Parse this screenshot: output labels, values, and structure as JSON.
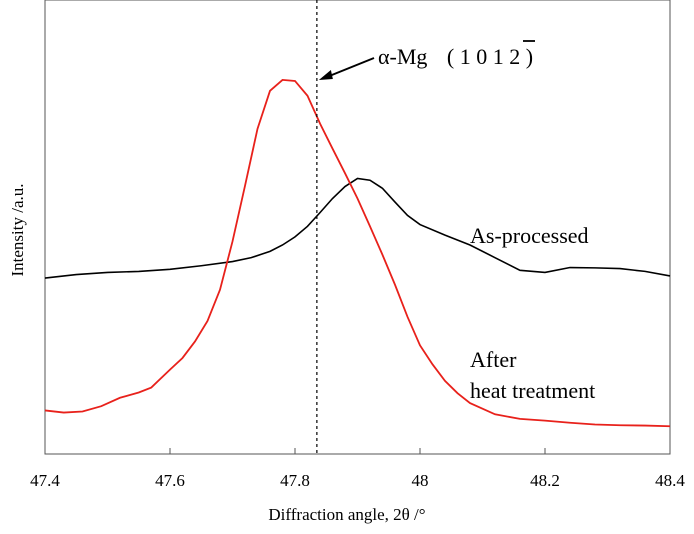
{
  "chart_data": {
    "type": "line",
    "title": "",
    "xlabel": "Diffraction angle, 2θ /°",
    "ylabel": "Intensity /a.u.",
    "xlim": [
      47.4,
      48.4
    ],
    "ylim": [
      0,
      100
    ],
    "x_ticks": [
      47.4,
      47.6,
      47.8,
      48,
      48.2,
      48.4
    ],
    "x_tick_labels": [
      "47.4",
      "47.6",
      "47.8",
      "48",
      "48.2",
      "48.4"
    ],
    "grid": false,
    "series": [
      {
        "name": "As-processed",
        "color": "#000000",
        "points": [
          [
            47.4,
            46.0
          ],
          [
            47.45,
            47.0
          ],
          [
            47.5,
            47.6
          ],
          [
            47.55,
            47.9
          ],
          [
            47.6,
            48.5
          ],
          [
            47.65,
            49.5
          ],
          [
            47.7,
            50.7
          ],
          [
            47.73,
            51.8
          ],
          [
            47.76,
            53.6
          ],
          [
            47.78,
            55.4
          ],
          [
            47.8,
            57.7
          ],
          [
            47.82,
            60.7
          ],
          [
            47.84,
            64.6
          ],
          [
            47.86,
            68.6
          ],
          [
            47.88,
            72.0
          ],
          [
            47.9,
            74.3
          ],
          [
            47.92,
            73.8
          ],
          [
            47.94,
            71.5
          ],
          [
            47.96,
            67.6
          ],
          [
            47.98,
            63.8
          ],
          [
            48.0,
            61.2
          ],
          [
            48.04,
            58.2
          ],
          [
            48.08,
            55.4
          ],
          [
            48.12,
            51.8
          ],
          [
            48.16,
            48.2
          ],
          [
            48.2,
            47.6
          ],
          [
            48.24,
            49.0
          ],
          [
            48.28,
            48.9
          ],
          [
            48.32,
            48.7
          ],
          [
            48.36,
            47.9
          ],
          [
            48.4,
            46.6
          ]
        ]
      },
      {
        "name": "After heat treatment",
        "color": "#e8211b",
        "points": [
          [
            47.4,
            8.4
          ],
          [
            47.43,
            7.8
          ],
          [
            47.46,
            8.1
          ],
          [
            47.49,
            9.6
          ],
          [
            47.52,
            12.0
          ],
          [
            47.55,
            13.5
          ],
          [
            47.57,
            14.9
          ],
          [
            47.6,
            20.0
          ],
          [
            47.62,
            23.3
          ],
          [
            47.64,
            28.0
          ],
          [
            47.66,
            33.8
          ],
          [
            47.68,
            42.7
          ],
          [
            47.7,
            56.4
          ],
          [
            47.72,
            72.2
          ],
          [
            47.74,
            88.4
          ],
          [
            47.76,
            99.2
          ],
          [
            47.78,
            102.3
          ],
          [
            47.8,
            102.0
          ],
          [
            47.82,
            97.8
          ],
          [
            47.84,
            89.9
          ],
          [
            47.86,
            82.8
          ],
          [
            47.88,
            75.8
          ],
          [
            47.9,
            68.6
          ],
          [
            47.92,
            60.7
          ],
          [
            47.94,
            52.6
          ],
          [
            47.96,
            44.1
          ],
          [
            47.98,
            35.0
          ],
          [
            48.0,
            26.9
          ],
          [
            48.02,
            21.5
          ],
          [
            48.04,
            16.8
          ],
          [
            48.06,
            13.3
          ],
          [
            48.08,
            10.5
          ],
          [
            48.12,
            7.3
          ],
          [
            48.16,
            6.0
          ],
          [
            48.2,
            5.5
          ],
          [
            48.24,
            4.9
          ],
          [
            48.28,
            4.4
          ],
          [
            48.32,
            4.2
          ],
          [
            48.36,
            4.1
          ],
          [
            48.4,
            3.9
          ]
        ]
      }
    ],
    "reference_line": {
      "x": 47.835,
      "style": "dashed",
      "label_prefix": "α-Mg",
      "label_hkl": "( 1 0 1 2 )",
      "overbar_index": "1"
    },
    "series_labels": {
      "as_processed": "As-processed",
      "after_line1": "After",
      "after_line2": "heat treatment"
    }
  }
}
